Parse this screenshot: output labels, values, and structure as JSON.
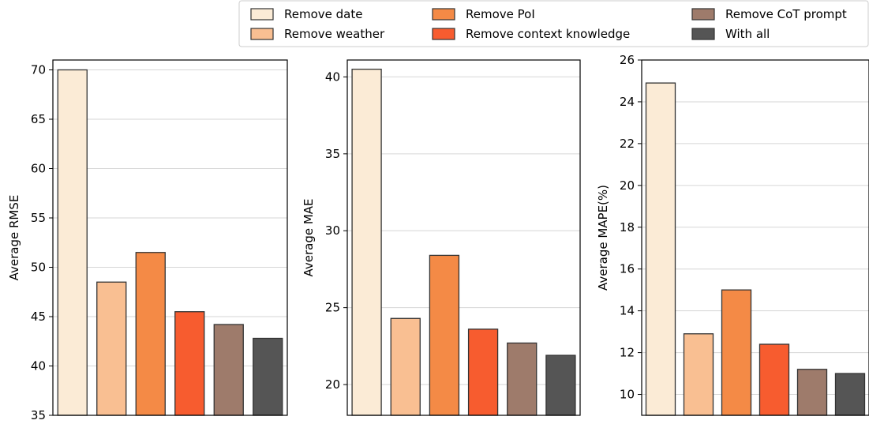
{
  "legend": {
    "placement": "top-right",
    "entries": [
      {
        "label": "Remove date",
        "color": "#fbebd6"
      },
      {
        "label": "Remove weather",
        "color": "#f9bf92"
      },
      {
        "label": "Remove PoI",
        "color": "#f48a46"
      },
      {
        "label": "Remove context knowledge",
        "color": "#f75c2f"
      },
      {
        "label": "Remove CoT prompt",
        "color": "#9e7b6b"
      },
      {
        "label": "With all",
        "color": "#555555"
      }
    ]
  },
  "chart_data": [
    {
      "type": "bar",
      "categories": [
        "Remove date",
        "Remove weather",
        "Remove PoI",
        "Remove context knowledge",
        "Remove CoT prompt",
        "With all"
      ],
      "values": [
        70.0,
        48.5,
        51.5,
        45.5,
        44.2,
        42.8
      ],
      "ylabel": "Average RMSE",
      "xlabel": "",
      "ylim": [
        35,
        71
      ],
      "yticks": [
        35,
        40,
        45,
        50,
        55,
        60,
        65,
        70
      ],
      "grid": "horizontal"
    },
    {
      "type": "bar",
      "categories": [
        "Remove date",
        "Remove weather",
        "Remove PoI",
        "Remove context knowledge",
        "Remove CoT prompt",
        "With all"
      ],
      "values": [
        40.5,
        24.3,
        28.4,
        23.6,
        22.7,
        21.9
      ],
      "ylabel": "Average MAE",
      "xlabel": "",
      "ylim": [
        18,
        41.1
      ],
      "yticks": [
        20,
        25,
        30,
        35,
        40
      ],
      "grid": "horizontal"
    },
    {
      "type": "bar",
      "categories": [
        "Remove date",
        "Remove weather",
        "Remove PoI",
        "Remove context knowledge",
        "Remove CoT prompt",
        "With all"
      ],
      "values": [
        24.9,
        12.9,
        15.0,
        12.4,
        11.2,
        11.0
      ],
      "ylabel": "Average MAPE(%)",
      "xlabel": "",
      "ylim": [
        9,
        26
      ],
      "yticks": [
        10,
        12,
        14,
        16,
        18,
        20,
        22,
        24,
        26
      ],
      "grid": "horizontal"
    }
  ]
}
